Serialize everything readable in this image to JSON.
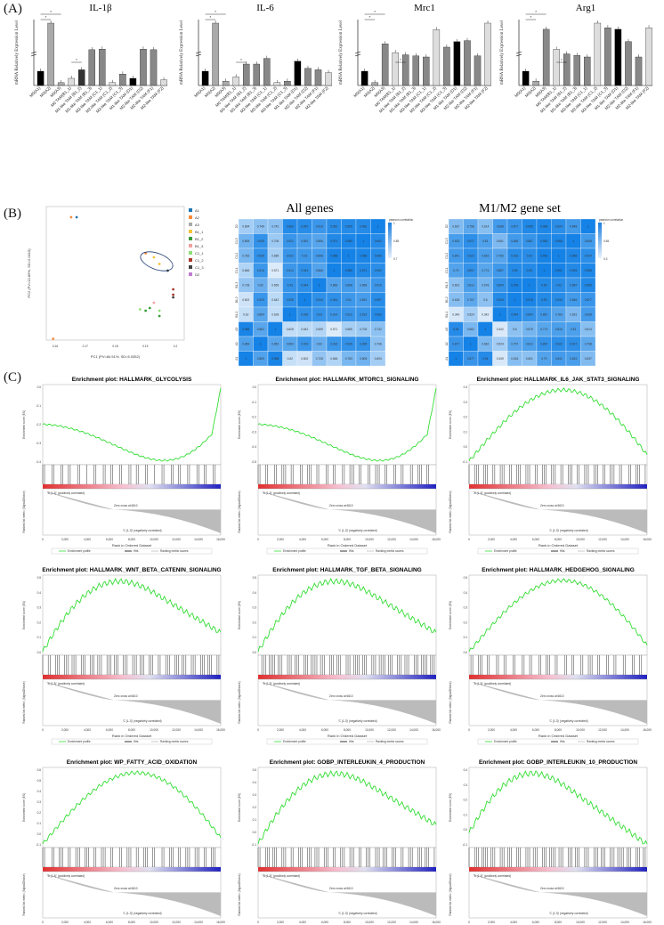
{
  "panels": {
    "a": "(A)",
    "b": "(B)",
    "c": "(C)"
  },
  "bar_charts": {
    "conditions": [
      "M0(A1)",
      "M0(A2)",
      "M0(A3)",
      "M0 TAM(B1_1)",
      "M1-like TAM (B1_2)",
      "M1-like TAM (B1_3)",
      "M2-like TAM (C1_1)",
      "M2-like TAM (C1_2)",
      "M2-like TAM (C1_3)",
      "M1-like TAM (D1)",
      "M2-like TAM (D2)",
      "M2-like TAM (F1)",
      "M2-like TAM (F2)"
    ],
    "charts": [
      {
        "title": "IL-1β",
        "ylabel": "mRNA Relatively Expression Level",
        "values": [
          1,
          58,
          0.2,
          0.5,
          1.1,
          14,
          15,
          0.2,
          0.8,
          0.5,
          15,
          14,
          0.4
        ],
        "colors": [
          "#000",
          "#aaa",
          "#aaa",
          "#ddd",
          "#333",
          "#888",
          "#888",
          "#ddd",
          "#888",
          "#000",
          "#888",
          "#888",
          "#ddd"
        ]
      },
      {
        "title": "IL-6",
        "ylabel": "mRNA Relatively Expression Level",
        "values": [
          1,
          30,
          0.3,
          0.6,
          1.5,
          1.5,
          1.9,
          0.2,
          0.3,
          1.7,
          1.2,
          1.1,
          0.9
        ],
        "colors": [
          "#000",
          "#aaa",
          "#aaa",
          "#ddd",
          "#888",
          "#888",
          "#888",
          "#ddd",
          "#888",
          "#000",
          "#888",
          "#888",
          "#ddd"
        ]
      },
      {
        "title": "Mrc1",
        "ylabel": "mRNA Relatively Expression Level",
        "values": [
          1,
          0.2,
          14,
          6,
          4,
          3,
          2,
          27,
          11,
          16,
          17,
          3,
          33
        ],
        "colors": [
          "#000",
          "#aaa",
          "#888",
          "#ddd",
          "#888",
          "#888",
          "#888",
          "#ddd",
          "#888",
          "#000",
          "#888",
          "#888",
          "#ddd"
        ]
      },
      {
        "title": "Arg1",
        "ylabel": "mRNA Relatively Expression Level",
        "values": [
          1,
          0.3,
          20,
          7,
          4,
          3,
          2,
          24,
          21,
          20,
          12,
          2,
          21
        ],
        "colors": [
          "#000",
          "#aaa",
          "#888",
          "#ddd",
          "#888",
          "#888",
          "#888",
          "#ddd",
          "#888",
          "#000",
          "#888",
          "#888",
          "#ddd"
        ]
      }
    ],
    "sig_star": "*",
    "sig_double": "**"
  },
  "pca": {
    "xlabel": "PC1 (PV=84.51%, SD=5.0352)",
    "ylabel": "PC2 (PV=13.89%, SD=2.0415)",
    "legend": [
      {
        "label": "A1",
        "color": "#1f78b4"
      },
      {
        "label": "A2",
        "color": "#fb8c3c"
      },
      {
        "label": "A3",
        "color": "#aaaaaa"
      },
      {
        "label": "B1_1",
        "color": "#f7c23c"
      },
      {
        "label": "B1_2",
        "color": "#3a9d3a"
      },
      {
        "label": "B1_3",
        "color": "#f2a0a0"
      },
      {
        "label": "C1_1",
        "color": "#8ee07a"
      },
      {
        "label": "C1_2",
        "color": "#a93a2e"
      },
      {
        "label": "C1_3",
        "color": "#444444"
      },
      {
        "label": "D2",
        "color": "#c07bd0"
      }
    ],
    "xticks": [
      "0.16",
      "0.17",
      "0.18",
      "0.19",
      "0.2"
    ]
  },
  "heatmaps": {
    "all_title": "All genes",
    "m_title": "M1/M2 gene set",
    "labels": [
      "A1",
      "A2",
      "A3",
      "B1-1",
      "B1-2",
      "B1-3",
      "C1-1",
      "C1-2",
      "C1-3",
      "D2"
    ],
    "legend_title": "pearson correlation",
    "legend_ticks": [
      "1",
      "0.85",
      "0.7"
    ],
    "m_legend_ticks": [
      "1",
      "0.65",
      "0.3"
    ],
    "all_values": [
      [
        1,
        0.869,
        0.988,
        0.62,
        0.602,
        0.728,
        0.666,
        0.783,
        0.805,
        0.694
      ],
      [
        0.869,
        1,
        0.852,
        0.854,
        0.919,
        0.82,
        0.916,
        0.935,
        0.935,
        0.746
      ],
      [
        0.988,
        0.852,
        1,
        0.628,
        0.642,
        0.659,
        0.571,
        0.685,
        0.706,
        0.742
      ],
      [
        0.62,
        0.854,
        0.628,
        1,
        0.935,
        0.93,
        0.914,
        0.922,
        0.922,
        0.963
      ],
      [
        0.602,
        0.919,
        0.642,
        0.935,
        1,
        0.944,
        0.944,
        0.91,
        0.891,
        0.957
      ],
      [
        0.728,
        0.82,
        0.659,
        0.93,
        0.944,
        1,
        0.866,
        0.898,
        0.858,
        0.915
      ],
      [
        0.666,
        0.916,
        0.571,
        0.914,
        0.944,
        0.866,
        1,
        0.988,
        0.971,
        0.952
      ],
      [
        0.783,
        0.935,
        0.685,
        0.922,
        0.91,
        0.898,
        0.988,
        1,
        0.985,
        0.965
      ],
      [
        0.805,
        0.935,
        0.706,
        0.922,
        0.891,
        0.858,
        0.971,
        0.985,
        1,
        0.962
      ],
      [
        0.694,
        0.746,
        0.742,
        0.963,
        0.957,
        0.915,
        0.952,
        0.965,
        0.962,
        1
      ]
    ],
    "m_values": [
      [
        1,
        0.877,
        0.94,
        0.349,
        0.618,
        0.601,
        0.79,
        0.841,
        0.823,
        0.637
      ],
      [
        0.877,
        1,
        0.662,
        0.524,
        0.757,
        0.812,
        0.897,
        0.922,
        0.917,
        0.758
      ],
      [
        0.94,
        0.662,
        1,
        0.342,
        0.6,
        0.678,
        0.774,
        0.816,
        0.81,
        0.614
      ],
      [
        0.349,
        0.524,
        0.342,
        1,
        0.944,
        0.894,
        0.857,
        0.783,
        0.651,
        0.838
      ],
      [
        0.618,
        0.757,
        0.6,
        0.944,
        1,
        0.978,
        0.95,
        0.933,
        0.846,
        0.877
      ],
      [
        0.601,
        0.812,
        0.678,
        0.894,
        0.978,
        1,
        0.95,
        0.93,
        0.887,
        0.955
      ],
      [
        0.79,
        0.897,
        0.774,
        0.857,
        0.95,
        0.95,
        1,
        0.991,
        0.953,
        0.968
      ],
      [
        0.841,
        0.922,
        0.816,
        0.783,
        0.933,
        0.93,
        0.991,
        1,
        0.968,
        0.924
      ],
      [
        0.823,
        0.917,
        0.81,
        0.651,
        0.846,
        0.887,
        0.953,
        0.968,
        1,
        0.848
      ],
      [
        0.637,
        0.758,
        0.614,
        0.838,
        0.877,
        0.955,
        0.968,
        0.924,
        0.848,
        1
      ]
    ]
  },
  "gsea": {
    "ylabel": "Enrichment score (ES)",
    "rank_ylabel": "Ranked list metric (Signal2Noise)",
    "xlabel": "Rank in Ordered Dataset",
    "pos_label": "'B (1-3)' (positively correlated)",
    "neg_label": "'C (1-3)' (negatively correlated)",
    "zero_label": "Zero cross at 6610",
    "legend": [
      "Enrichment profile",
      "Hits",
      "Ranking metric scores"
    ],
    "xticks": [
      "0",
      "2,000",
      "4,000",
      "6,000",
      "8,000",
      "10,000",
      "12,000",
      "14,000",
      "16,000"
    ],
    "plots": [
      {
        "title": "Enrichment plot: HALLMARK_GLYCOLYSIS",
        "shape": "neg",
        "yticks": [
          "0.0",
          "-0.1",
          "-0.2",
          "-0.3",
          "-0.4"
        ]
      },
      {
        "title": "Enrichment plot: HALLMARK_MTORC1_SIGNALING",
        "shape": "neg",
        "yticks": [
          "0.0",
          "-0.1",
          "-0.2",
          "-0.3",
          "-0.4",
          "-0.5"
        ]
      },
      {
        "title": "Enrichment plot: HALLMARK_IL6_JAK_STAT3_SIGNALING",
        "shape": "pos_mid",
        "yticks": [
          "0.4",
          "0.3",
          "0.2",
          "0.1",
          "0.0",
          "-0.1"
        ]
      },
      {
        "title": "Enrichment plot: HALLMARK_WNT_BETA_CATENIN_SIGNALING",
        "shape": "pos_early",
        "yticks": [
          "0.5",
          "0.4",
          "0.3",
          "0.2",
          "0.1",
          "0.0"
        ]
      },
      {
        "title": "Enrichment plot: HALLMARK_TGF_BETA_SIGNALING",
        "shape": "pos_early",
        "yticks": [
          "0.5",
          "0.4",
          "0.3",
          "0.2",
          "0.1",
          "0.0"
        ]
      },
      {
        "title": "Enrichment plot: HALLMARK_HEDGEHOG_SIGNALING",
        "shape": "pos_mid",
        "yticks": [
          "0.5",
          "0.4",
          "0.3",
          "0.2",
          "0.1",
          "0.0"
        ]
      },
      {
        "title": "Enrichment plot: WP_FATTY_ACID_OXIDATION",
        "shape": "pos_mid",
        "yticks": [
          "0.6",
          "0.5",
          "0.4",
          "0.3",
          "0.2",
          "0.1",
          "0.0",
          "-0.1"
        ]
      },
      {
        "title": "Enrichment plot: GOBP_INTERLEUKIN_4_PRODUCTION",
        "shape": "pos_early",
        "yticks": [
          "0.5",
          "0.4",
          "0.3",
          "0.2",
          "0.1",
          "0.0",
          "-0.1"
        ]
      },
      {
        "title": "Enrichment plot: GOBP_INTERLEUKIN_10_PRODUCTION",
        "shape": "pos_early_neg",
        "yticks": [
          "0.4",
          "0.3",
          "0.2",
          "0.1",
          "0.0",
          "-0.1"
        ]
      }
    ]
  }
}
